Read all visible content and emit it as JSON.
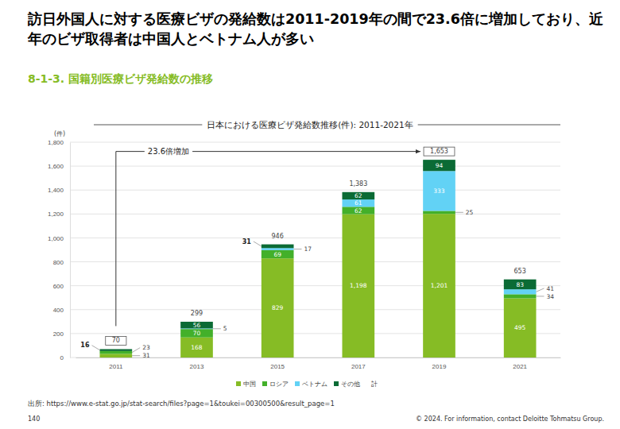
{
  "page": {
    "title": [
      "訪日外国人に対する医療ビザの発給数は2011-2019年の間で23.6倍に増加しており、近",
      "年のビザ取得者は中国人とベトナム人が多い"
    ],
    "subtitle": "8-1-3. 国籍別医療ビザ発給数の推移",
    "source": "出所: https://www.e-stat.go.jp/stat-search/files?page=1&toukei=00300500&result_page=1",
    "page_number": "140",
    "copyright": "© 2024. For information, contact Deloitte Tohmatsu Group."
  },
  "chart_data": {
    "type": "bar",
    "stacked": true,
    "title": "日本における医療ビザ発給数推移(件): 2011-2021年",
    "y_label": "(件)",
    "categories": [
      "2011",
      "2013",
      "2015",
      "2017",
      "2019",
      "2021"
    ],
    "series": [
      {
        "name": "中国",
        "color": "#86bc25",
        "values": [
          31,
          168,
          829,
          1198,
          1201,
          495
        ],
        "value_labels": [
          "31",
          "168",
          "829",
          "1,198",
          "1,201",
          "495"
        ]
      },
      {
        "name": "ロシア",
        "color": "#43b02a",
        "values": [
          23,
          70,
          69,
          62,
          25,
          34
        ]
      },
      {
        "name": "ベトナム",
        "color": "#62d2f5",
        "values": [
          null,
          5,
          17,
          61,
          333,
          41
        ]
      },
      {
        "name": "その他",
        "color": "#0b6b35",
        "values": [
          16,
          56,
          31,
          62,
          94,
          83
        ]
      },
      {
        "name": "計",
        "type": "total",
        "values": [
          70,
          299,
          946,
          1383,
          1653,
          653
        ],
        "value_labels": [
          "70",
          "299",
          "946",
          "1,383",
          "1,653",
          "653"
        ]
      }
    ],
    "ylim": [
      0,
      1800
    ],
    "yticks": [
      0,
      200,
      400,
      600,
      800,
      {
        "value": 1000,
        "label": "1,000"
      },
      {
        "value": 1200,
        "label": "1,200"
      },
      {
        "value": 1400,
        "label": "1,400"
      },
      {
        "value": 1600,
        "label": "1,600"
      },
      {
        "value": 1800,
        "label": "1,800"
      }
    ],
    "grid": true,
    "legend": "bottom",
    "data_labels": true,
    "annotations": [
      {
        "text": "23.6倍増加",
        "from": "2011",
        "to": "2019"
      }
    ]
  }
}
